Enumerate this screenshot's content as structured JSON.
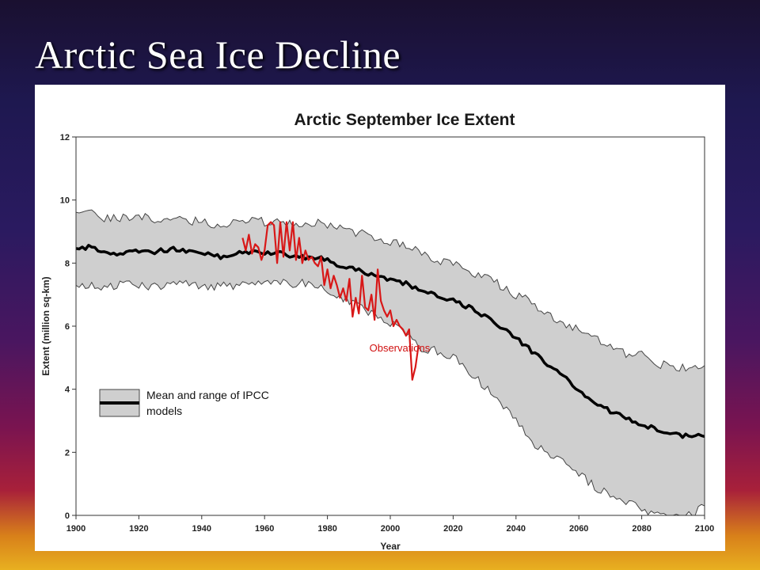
{
  "slide": {
    "title": "Arctic Sea Ice Decline"
  },
  "chart_data": {
    "type": "line",
    "title": "Arctic September Ice Extent",
    "xlabel": "Year",
    "ylabel": "Extent (million sq-km)",
    "xlim": [
      1900,
      2100
    ],
    "ylim": [
      0,
      12
    ],
    "x_ticks": [
      "1900",
      "1920",
      "1940",
      "1960",
      "1980",
      "2000",
      "2020",
      "2040",
      "2060",
      "2080",
      "2100"
    ],
    "y_ticks": [
      "0",
      "2",
      "4",
      "6",
      "8",
      "10",
      "12"
    ],
    "grid": false,
    "legend": {
      "position": "middle-left",
      "label_line1": "Mean and range of IPCC",
      "label_line2": "models"
    },
    "annotation": {
      "text": "Observations",
      "x": 2003,
      "y": 5.2
    },
    "colors": {
      "band_fill": "#cfcfcf",
      "band_edge": "#444444",
      "mean": "#000000",
      "observations": "#d81818"
    },
    "series": [
      {
        "name": "Mean and range of IPCC models",
        "x": [
          1900,
          1905,
          1910,
          1915,
          1920,
          1925,
          1930,
          1935,
          1940,
          1945,
          1950,
          1955,
          1960,
          1965,
          1970,
          1975,
          1980,
          1985,
          1990,
          1995,
          2000,
          2005,
          2010,
          2015,
          2020,
          2025,
          2030,
          2035,
          2040,
          2045,
          2050,
          2055,
          2060,
          2065,
          2070,
          2075,
          2080,
          2085,
          2090,
          2095,
          2100
        ],
        "mean": [
          8.5,
          8.5,
          8.35,
          8.3,
          8.4,
          8.35,
          8.45,
          8.35,
          8.3,
          8.2,
          8.3,
          8.35,
          8.35,
          8.3,
          8.2,
          8.2,
          8.1,
          7.9,
          7.75,
          7.6,
          7.5,
          7.35,
          7.1,
          6.95,
          6.8,
          6.6,
          6.3,
          6.0,
          5.6,
          5.2,
          4.8,
          4.4,
          4.0,
          3.6,
          3.3,
          3.1,
          2.9,
          2.7,
          2.6,
          2.5,
          2.5
        ],
        "upper": [
          9.65,
          9.55,
          9.4,
          9.45,
          9.5,
          9.35,
          9.5,
          9.3,
          9.35,
          9.2,
          9.3,
          9.4,
          9.3,
          9.3,
          9.25,
          9.3,
          9.2,
          9.1,
          8.95,
          8.85,
          8.7,
          8.55,
          8.3,
          8.1,
          7.95,
          7.75,
          7.55,
          7.3,
          7.0,
          6.75,
          6.35,
          6.1,
          5.85,
          5.6,
          5.3,
          5.1,
          5.1,
          4.8,
          4.75,
          4.6,
          4.75
        ],
        "lower": [
          7.25,
          7.3,
          7.2,
          7.35,
          7.3,
          7.25,
          7.3,
          7.35,
          7.3,
          7.25,
          7.3,
          7.4,
          7.4,
          7.35,
          7.35,
          7.35,
          7.1,
          6.85,
          6.65,
          6.35,
          6.1,
          5.75,
          5.3,
          5.2,
          5.0,
          4.6,
          4.1,
          3.6,
          3.0,
          2.3,
          1.95,
          1.65,
          1.3,
          0.9,
          0.65,
          0.45,
          0.15,
          0.05,
          0.0,
          0.0,
          0.3
        ]
      },
      {
        "name": "Observations",
        "x": [
          1953,
          1954,
          1955,
          1956,
          1957,
          1958,
          1959,
          1960,
          1961,
          1962,
          1963,
          1964,
          1965,
          1966,
          1967,
          1968,
          1969,
          1970,
          1971,
          1972,
          1973,
          1974,
          1975,
          1976,
          1977,
          1978,
          1979,
          1980,
          1981,
          1982,
          1983,
          1984,
          1985,
          1986,
          1987,
          1988,
          1989,
          1990,
          1991,
          1992,
          1993,
          1994,
          1995,
          1996,
          1997,
          1998,
          1999,
          2000,
          2001,
          2002,
          2003,
          2004,
          2005,
          2006,
          2007,
          2008,
          2009
        ],
        "y": [
          8.8,
          8.4,
          8.9,
          8.3,
          8.6,
          8.5,
          8.1,
          8.4,
          9.2,
          9.3,
          9.2,
          8.0,
          9.3,
          8.2,
          9.3,
          8.4,
          9.3,
          8.1,
          8.8,
          8.0,
          8.4,
          8.1,
          8.2,
          8.0,
          7.9,
          8.2,
          7.3,
          7.8,
          7.2,
          7.6,
          7.3,
          6.9,
          7.2,
          6.8,
          7.5,
          6.3,
          6.9,
          6.4,
          7.6,
          6.6,
          6.5,
          7.0,
          6.2,
          7.8,
          6.8,
          6.5,
          6.3,
          6.5,
          6.0,
          6.2,
          6.0,
          5.9,
          5.7,
          5.9,
          4.3,
          4.7,
          5.4
        ]
      }
    ]
  }
}
